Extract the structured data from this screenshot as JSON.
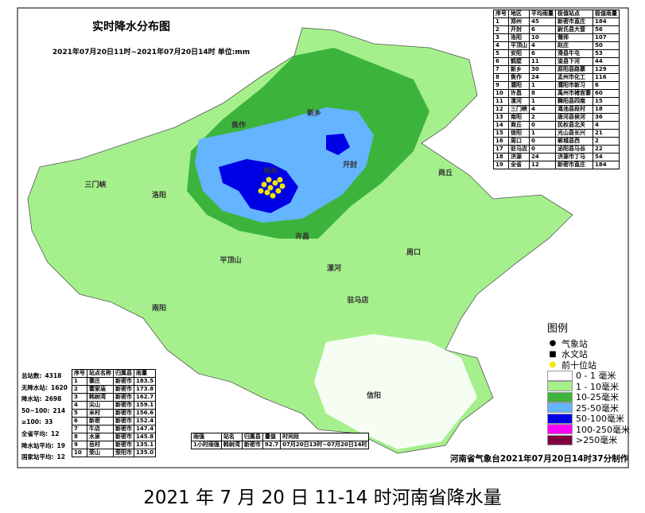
{
  "header": {
    "title": "实时降水分布图",
    "subtitle": "2021年07月20日11时~2021年07月20日14时 单位:mm"
  },
  "region_table": {
    "columns": [
      "序号",
      "地区",
      "平均雨量",
      "极值站点",
      "极值雨量"
    ],
    "rows": [
      [
        "1",
        "郑州",
        "45",
        "新密市直庄",
        "184"
      ],
      [
        "2",
        "开封",
        "6",
        "尉氏县大营",
        "56"
      ],
      [
        "3",
        "洛阳",
        "10",
        "偃师",
        "107"
      ],
      [
        "4",
        "平顶山",
        "4",
        "赵庄",
        "50"
      ],
      [
        "5",
        "安阳",
        "6",
        "滑县牛屯",
        "53"
      ],
      [
        "6",
        "鹤壁",
        "11",
        "浚县下河",
        "44"
      ],
      [
        "7",
        "新乡",
        "30",
        "原阳县路寨",
        "129"
      ],
      [
        "8",
        "焦作",
        "24",
        "孟州市化工",
        "116"
      ],
      [
        "9",
        "濮阳",
        "1",
        "濮阳市新习",
        "6"
      ],
      [
        "10",
        "许昌",
        "8",
        "禹州市褚官寨",
        "60"
      ],
      [
        "11",
        "漯河",
        "1",
        "舞阳县四南",
        "15"
      ],
      [
        "12",
        "三门峡",
        "4",
        "渑池县段村",
        "18"
      ],
      [
        "13",
        "南阳",
        "2",
        "唐河县侯河",
        "36"
      ],
      [
        "14",
        "商丘",
        "0",
        "民权县北关",
        "4"
      ],
      [
        "15",
        "信阳",
        "1",
        "光山县长兴",
        "21"
      ],
      [
        "16",
        "周口",
        "0",
        "郸城县西",
        "2"
      ],
      [
        "17",
        "驻马店",
        "0",
        "泌阳县马谷",
        "22"
      ],
      [
        "18",
        "济源",
        "24",
        "济源市丁马",
        "54"
      ],
      [
        "19",
        "全省",
        "12",
        "新密市直庄",
        "184"
      ]
    ]
  },
  "stats": [
    [
      "总站数:",
      "4318"
    ],
    [
      "无降水站:",
      "1620"
    ],
    [
      "降水站:",
      "2698"
    ],
    [
      "50~100:",
      "214"
    ],
    [
      "≥100:",
      "33"
    ],
    [
      "全省平均:",
      "12"
    ],
    [
      "降水站平均:",
      "19"
    ],
    [
      "国家站平均:",
      "12"
    ]
  ],
  "top_table": {
    "columns": [
      "序号",
      "站点名称",
      "归属县",
      "雨量"
    ],
    "rows": [
      [
        "1",
        "寨庄",
        "新密市",
        "183.5"
      ],
      [
        "2",
        "霍家庙",
        "新密市",
        "173.8"
      ],
      [
        "3",
        "韩树湾",
        "新密市",
        "162.7"
      ],
      [
        "4",
        "尖山",
        "新密市",
        "159.1"
      ],
      [
        "5",
        "米村",
        "新密市",
        "156.6"
      ],
      [
        "6",
        "新密",
        "新密市",
        "152.4"
      ],
      [
        "7",
        "牛店",
        "新密市",
        "147.4"
      ],
      [
        "8",
        "水泉",
        "新密市",
        "145.8"
      ],
      [
        "9",
        "岳村",
        "新密市",
        "135.1"
      ],
      [
        "10",
        "荥山",
        "荥阳市",
        "135.0"
      ]
    ]
  },
  "intensity_table": {
    "columns": [
      "雨强",
      "站名",
      "归属县",
      "量值",
      "时间段"
    ],
    "rows": [
      [
        "1小时雨强",
        "韩树湾",
        "新密市",
        "92.7",
        "07月20日13时~07月20日14时"
      ]
    ]
  },
  "legend": {
    "title": "图例",
    "symbols": [
      {
        "label": "气象站",
        "icon": "●",
        "color": "#000"
      },
      {
        "label": "水文站",
        "icon": "■",
        "color": "#000"
      },
      {
        "label": "前十位站",
        "icon": "●",
        "color": "#f2e600"
      }
    ],
    "items": [
      {
        "label": "0 - 1 毫米",
        "color": "#ffffff"
      },
      {
        "label": "1 - 10毫米",
        "color": "#a5f08c"
      },
      {
        "label": "10-25毫米",
        "color": "#3cb43c"
      },
      {
        "label": "25-50毫米",
        "color": "#64b4ff"
      },
      {
        "label": "50-100毫米",
        "color": "#0000e6"
      },
      {
        "label": "100-250毫米",
        "color": "#fa00fa"
      },
      {
        "label": ">250毫米",
        "color": "#800040"
      }
    ]
  },
  "map": {
    "labels": [
      "郑州",
      "洛阳",
      "开封",
      "新乡",
      "焦作",
      "许昌",
      "平顶山",
      "南阳",
      "驻马店",
      "信阳",
      "周口",
      "商丘",
      "漯河",
      "三门峡"
    ]
  },
  "footer": "河南省气象台2021年07月20日14时37分制作",
  "caption": "2021 年 7 月 20 日 11-14 时河南省降水量"
}
